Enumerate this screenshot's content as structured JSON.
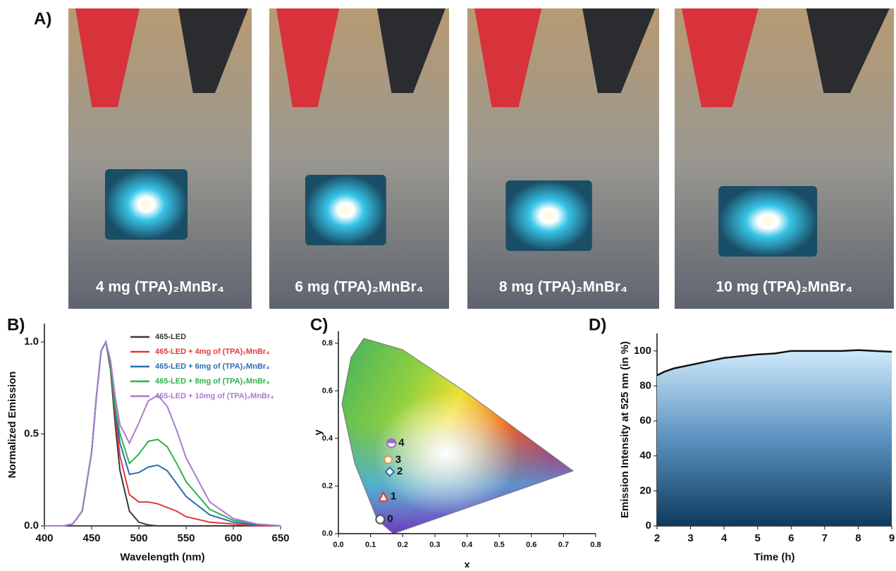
{
  "photos": {
    "label": "A)",
    "captions": [
      "4 mg (TPA)₂MnBr₄",
      "6 mg (TPA)₂MnBr₄",
      "8 mg (TPA)₂MnBr₄",
      "10 mg (TPA)₂MnBr₄"
    ]
  },
  "chart_data": [
    {
      "type": "line",
      "label": "B)",
      "xlabel": "Wavelength (nm)",
      "ylabel": "Normalized Emission",
      "x": [
        400,
        420,
        430,
        440,
        450,
        455,
        460,
        465,
        470,
        475,
        480,
        490,
        500,
        510,
        520,
        530,
        540,
        550,
        575,
        600,
        625,
        650
      ],
      "series": [
        {
          "name": "465-LED",
          "color": "#3a3a3a",
          "values": [
            0,
            0,
            0.01,
            0.08,
            0.4,
            0.7,
            0.95,
            1.0,
            0.85,
            0.55,
            0.3,
            0.08,
            0.02,
            0.005,
            0,
            0,
            0,
            0,
            0,
            0,
            0,
            0
          ]
        },
        {
          "name": "465-LED + 4mg of (TPA)₂MnBr₄",
          "color": "#e0393e",
          "values": [
            0,
            0,
            0.01,
            0.08,
            0.4,
            0.7,
            0.95,
            1.0,
            0.86,
            0.6,
            0.38,
            0.17,
            0.13,
            0.13,
            0.12,
            0.1,
            0.08,
            0.05,
            0.02,
            0.01,
            0,
            0
          ]
        },
        {
          "name": "465-LED + 6mg of (TPA)₂MnBr₄",
          "color": "#2a6db3",
          "values": [
            0,
            0,
            0.01,
            0.08,
            0.4,
            0.7,
            0.95,
            1.0,
            0.87,
            0.63,
            0.45,
            0.28,
            0.29,
            0.32,
            0.33,
            0.3,
            0.23,
            0.16,
            0.06,
            0.02,
            0.005,
            0
          ]
        },
        {
          "name": "465-LED + 8mg of (TPA)₂MnBr₄",
          "color": "#2db34a",
          "values": [
            0,
            0,
            0.01,
            0.08,
            0.4,
            0.7,
            0.95,
            1.0,
            0.88,
            0.65,
            0.5,
            0.34,
            0.39,
            0.46,
            0.47,
            0.43,
            0.34,
            0.24,
            0.09,
            0.03,
            0.01,
            0
          ]
        },
        {
          "name": "465-LED + 10mg of (TPA)₂MnBr₄",
          "color": "#a77bd1",
          "values": [
            0,
            0,
            0.01,
            0.08,
            0.4,
            0.7,
            0.95,
            1.0,
            0.9,
            0.7,
            0.55,
            0.45,
            0.56,
            0.68,
            0.71,
            0.65,
            0.52,
            0.37,
            0.13,
            0.04,
            0.01,
            0
          ]
        }
      ],
      "xlim": [
        400,
        650
      ],
      "ylim": [
        0,
        1.1
      ],
      "xticks": [
        400,
        450,
        500,
        550,
        600,
        650
      ],
      "yticks": [
        {
          "value": 0,
          "label": "0.0"
        },
        {
          "value": 0.5,
          "label": "0.5"
        },
        {
          "value": 1,
          "label": "1.0"
        }
      ]
    },
    {
      "type": "scatter",
      "label": "C)",
      "xlabel": "x",
      "ylabel": "y",
      "x": [
        0.13,
        0.14,
        0.16,
        0.155,
        0.165
      ],
      "values": [
        0.06,
        0.155,
        0.26,
        0.31,
        0.38
      ],
      "point_labels": [
        "0",
        "1",
        "2",
        "3",
        "4"
      ],
      "markers": [
        "circle",
        "triangle",
        "diamond",
        "pentagon",
        "half-circle"
      ],
      "colors": [
        "#555555",
        "#e0393e",
        "#2a6db3",
        "#e69a3c",
        "#9b6bc7"
      ],
      "xlim": [
        0,
        0.8
      ],
      "ylim": [
        0,
        0.85
      ],
      "xticks": [
        {
          "value": 0,
          "label": "0.0"
        },
        {
          "value": 0.1,
          "label": "0.1"
        },
        {
          "value": 0.2,
          "label": "0.2"
        },
        {
          "value": 0.3,
          "label": "0.3"
        },
        {
          "value": 0.4,
          "label": "0.4"
        },
        {
          "value": 0.5,
          "label": "0.5"
        },
        {
          "value": 0.6,
          "label": "0.6"
        },
        {
          "value": 0.7,
          "label": "0.7"
        },
        {
          "value": 0.8,
          "label": "0.8"
        }
      ],
      "yticks": [
        {
          "value": 0,
          "label": "0.0"
        },
        {
          "value": 0.2,
          "label": "0.2"
        },
        {
          "value": 0.4,
          "label": "0.4"
        },
        {
          "value": 0.6,
          "label": "0.6"
        },
        {
          "value": 0.8,
          "label": "0.8"
        }
      ]
    },
    {
      "type": "area",
      "label": "D)",
      "xlabel": "Time (h)",
      "ylabel": "Emission Intensity at 525 nm (in %)",
      "x": [
        2,
        2.2,
        2.5,
        3,
        3.5,
        4,
        4.5,
        5,
        5.5,
        6,
        6.5,
        7,
        7.5,
        8,
        8.5,
        9
      ],
      "values": [
        86,
        88,
        90,
        92,
        94,
        96,
        97,
        98,
        98.5,
        100,
        100,
        100,
        100,
        100.5,
        100,
        99.5
      ],
      "color": "#111111",
      "xlim": [
        2,
        9
      ],
      "ylim": [
        0,
        110
      ],
      "xticks": [
        2,
        3,
        4,
        5,
        6,
        7,
        8,
        9
      ],
      "yticks": [
        0,
        20,
        40,
        60,
        80,
        100
      ]
    }
  ]
}
